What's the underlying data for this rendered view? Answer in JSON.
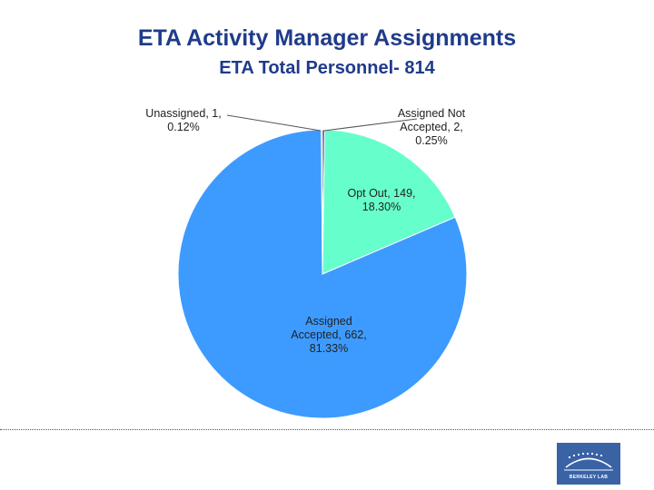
{
  "chart_data": {
    "type": "pie",
    "title": "ETA Activity Manager Assignments",
    "subtitle": "ETA Total Personnel- 814",
    "start_angle_deg": 0,
    "direction": "clockwise",
    "slices": [
      {
        "name": "Assigned Not Accepted",
        "value": 2,
        "percent": 0.25,
        "label_lines": [
          "Assigned Not",
          "Accepted, 2,",
          "0.25%"
        ],
        "color": "#2b3a86"
      },
      {
        "name": "Opt Out",
        "value": 149,
        "percent": 18.3,
        "label_lines": [
          "Opt Out, 149,",
          "18.30%"
        ],
        "color": "#66ffcc"
      },
      {
        "name": "Assigned Accepted",
        "value": 662,
        "percent": 81.33,
        "label_lines": [
          "Assigned",
          "Accepted, 662,",
          "81.33%"
        ],
        "color": "#3d9bff"
      },
      {
        "name": "Unassigned",
        "value": 1,
        "percent": 0.12,
        "label_lines": [
          "Unassigned, 1,",
          "0.12%"
        ],
        "color": "#6b4a1e"
      }
    ]
  },
  "logo": {
    "text": "BERKELEY LAB",
    "color": "#3a63a6"
  }
}
